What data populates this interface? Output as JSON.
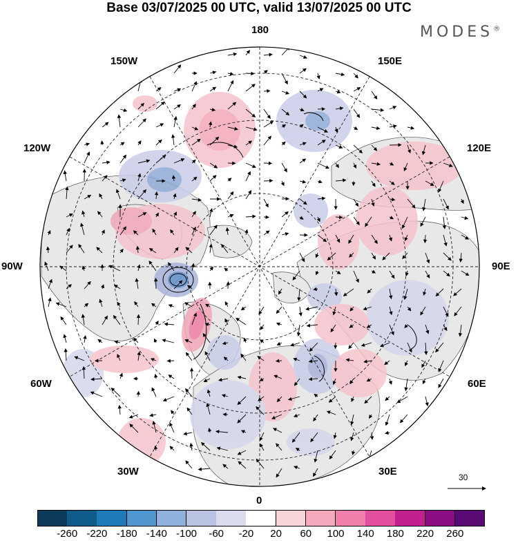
{
  "header": {
    "title": "Base 03/07/2025 00 UTC, valid 13/07/2025 00 UTC",
    "brand": "MODES"
  },
  "map": {
    "projection": "north-polar-stereographic",
    "longitude_labels": {
      "top": "180",
      "bottom": "0",
      "left": "90W",
      "right": "90E",
      "upper_left": "150W",
      "upper_right": "150E",
      "mid_upper_left": "120W",
      "mid_upper_right": "120E",
      "lower_left_mid": "60W",
      "lower_right_mid": "60E",
      "lower_left": "30W",
      "lower_right": "30E"
    },
    "wind_vector_reference": "30",
    "colors": {
      "land": "#e8e8e8",
      "coast": "#444444",
      "positive": "#f4a6b8",
      "negative": "#a9b4da"
    }
  },
  "legend": {
    "ticks": [
      "-260",
      "-220",
      "-180",
      "-140",
      "-100",
      "-60",
      "-20",
      "20",
      "60",
      "100",
      "140",
      "180",
      "220",
      "260"
    ],
    "colors": [
      "#0b3a5a",
      "#0e5b8c",
      "#1f7ab8",
      "#4f98cf",
      "#8fb2dd",
      "#b8c3e4",
      "#dcdcef",
      "#ffffff",
      "#f9d4d8",
      "#f6a8bd",
      "#f07fab",
      "#e24f9e",
      "#c3208f",
      "#8b0c84",
      "#5a0a75"
    ]
  }
}
